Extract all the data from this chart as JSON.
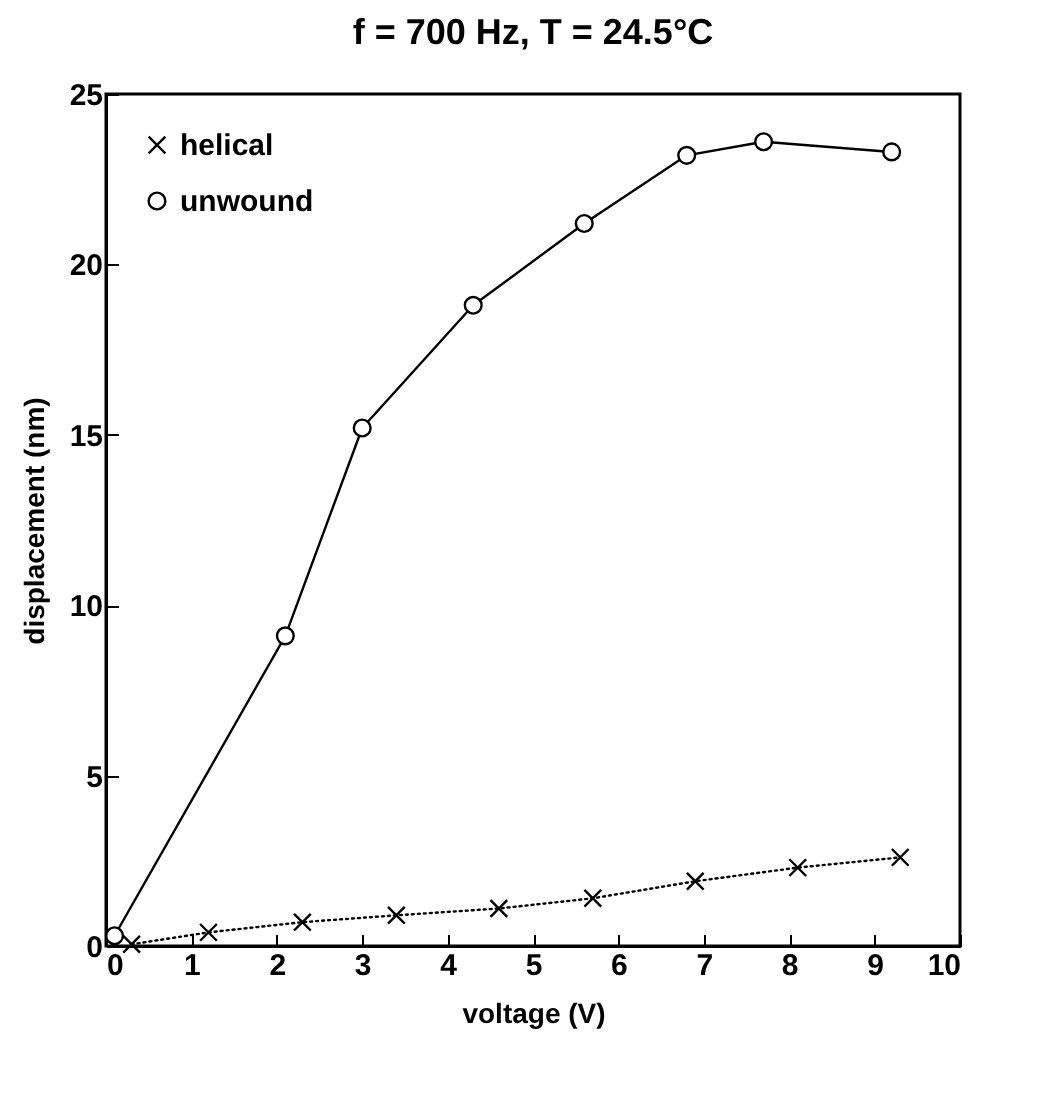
{
  "chart_data": {
    "type": "line",
    "title": "f = 700 Hz, T = 24.5°C",
    "xlabel": "voltage (V)",
    "ylabel": "displacement (nm)",
    "xlim": [
      0,
      10
    ],
    "xticks": [
      0,
      1,
      2,
      3,
      4,
      5,
      6,
      7,
      8,
      9,
      10
    ],
    "ylim": [
      0,
      25
    ],
    "yticks": [
      0,
      5,
      10,
      15,
      20,
      25
    ],
    "grid": false,
    "legend": "top left",
    "series": [
      {
        "name": "helical",
        "color": "#000000",
        "marker": "cross",
        "line_style": "dotted",
        "x": [
          0.3,
          1.2,
          2.3,
          3.4,
          4.6,
          5.7,
          6.9,
          8.1,
          9.3
        ],
        "values": [
          0.05,
          0.4,
          0.7,
          0.9,
          1.1,
          1.4,
          1.9,
          2.3,
          2.6
        ]
      },
      {
        "name": "unwound",
        "color": "#000000",
        "marker": "circle",
        "line_style": "solid",
        "x": [
          0.1,
          2.1,
          3.0,
          4.3,
          5.6,
          6.8,
          7.7,
          9.2
        ],
        "values": [
          0.3,
          9.1,
          15.2,
          18.8,
          21.2,
          23.2,
          23.6,
          23.3
        ]
      }
    ]
  }
}
